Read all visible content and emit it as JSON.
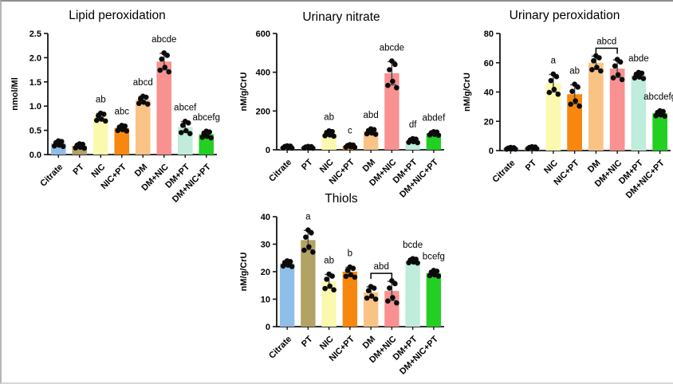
{
  "palette": {
    "bar_colors_default": [
      "#8FBEE9",
      "#B2A264",
      "#FBF9AE",
      "#F8870F",
      "#F9C386",
      "#F99190",
      "#BFECDB",
      "#23CF23"
    ],
    "dot_color": "#0b0b0b",
    "error_bar_color": "#4f4f4f",
    "axis_color": "#141414"
  },
  "chart_data": [
    {
      "type": "bar",
      "title": "Lipid peroxidation",
      "ylabel": "nmol/Ml",
      "ylim": [
        0,
        2.5
      ],
      "grid": false,
      "ytick_values": [
        0,
        0.5,
        1.0,
        1.5,
        2.0,
        2.5
      ],
      "ytick_labels": [
        "0.0",
        "0.5",
        "1.0",
        "1.5",
        "2.0",
        "2.5"
      ],
      "categories": [
        "Citrate",
        "PT",
        "NIC",
        "NIC+PT",
        "DM",
        "DM+NIC",
        "DM+PT",
        "DM+NIC+PT"
      ],
      "values": [
        0.23,
        0.18,
        0.78,
        0.55,
        1.13,
        1.92,
        0.57,
        0.42
      ],
      "errors": [
        0.05,
        0.04,
        0.07,
        0.05,
        0.07,
        0.17,
        0.11,
        0.06
      ],
      "sig_labels": [
        "",
        "",
        "ab",
        "abc",
        "abcd",
        "abcde",
        "abcef",
        "abcefg"
      ],
      "bracket": null
    },
    {
      "type": "bar",
      "title": "Urinary nitrate",
      "ylabel": "nM/g/CrU",
      "ylim": [
        0,
        600
      ],
      "grid": false,
      "ytick_values": [
        0,
        200,
        400,
        600
      ],
      "ytick_labels": [
        "0",
        "200",
        "400",
        "600"
      ],
      "categories": [
        "Citrate",
        "PT",
        "NIC",
        "NIC+PT",
        "DM",
        "DM+NIC",
        "DM+PT",
        "DM+NIC+PT"
      ],
      "values": [
        15,
        13,
        85,
        20,
        95,
        395,
        48,
        85
      ],
      "errors": [
        5,
        4,
        12,
        6,
        12,
        60,
        9,
        8
      ],
      "sig_labels": [
        "",
        "",
        "ab",
        "c",
        "abd",
        "abcde",
        "df",
        "abdef"
      ],
      "bracket": null,
      "bar_colors": [
        "#96A3E2",
        "#B2A264",
        "#FBF9AE",
        "#F8870F",
        "#F9C386",
        "#F99190",
        "#BFECDB",
        "#23CF23"
      ]
    },
    {
      "type": "bar",
      "title": "Urinary peroxidation",
      "ylabel": "nM/g/CrU",
      "ylim": [
        0,
        80
      ],
      "grid": false,
      "ytick_values": [
        0,
        20,
        40,
        60,
        80
      ],
      "ytick_labels": [
        "0",
        "20",
        "40",
        "60",
        "80"
      ],
      "categories": [
        "Citrate",
        "PT",
        "NIC",
        "NIC+PT",
        "DM",
        "DM+NIC",
        "DM+PT",
        "DM+NIC+PT"
      ],
      "values": [
        1.5,
        2,
        46,
        38.5,
        60,
        56,
        51.5,
        25.5
      ],
      "errors": [
        0.6,
        0.6,
        6,
        6.5,
        4.5,
        6,
        1.8,
        1.6
      ],
      "sig_labels": [
        "",
        "",
        "a",
        "ab",
        "",
        "",
        "abde",
        "abcdefg"
      ],
      "bracket": {
        "from": 4,
        "to": 5,
        "label": "abcd"
      }
    },
    {
      "type": "bar",
      "title": "Thiols",
      "ylabel": "nM/g/CrU",
      "ylim": [
        0,
        40
      ],
      "grid": false,
      "ytick_values": [
        0,
        10,
        20,
        30,
        40
      ],
      "ytick_labels": [
        "0",
        "10",
        "20",
        "30",
        "40"
      ],
      "categories": [
        "Citrate",
        "PT",
        "NIC",
        "NIC+PT",
        "DM",
        "DM+NIC",
        "DM+PT",
        "DM+NIC+PT"
      ],
      "values": [
        23,
        31.5,
        16.5,
        20,
        12.5,
        13,
        24,
        19.5
      ],
      "errors": [
        0.9,
        3.5,
        2.5,
        1.6,
        2,
        3.5,
        0.7,
        0.9
      ],
      "sig_labels": [
        "",
        "a",
        "ab",
        "b",
        "",
        "",
        "bcde",
        "bcefg"
      ],
      "bracket": {
        "from": 4,
        "to": 5,
        "label": "abd"
      }
    }
  ]
}
